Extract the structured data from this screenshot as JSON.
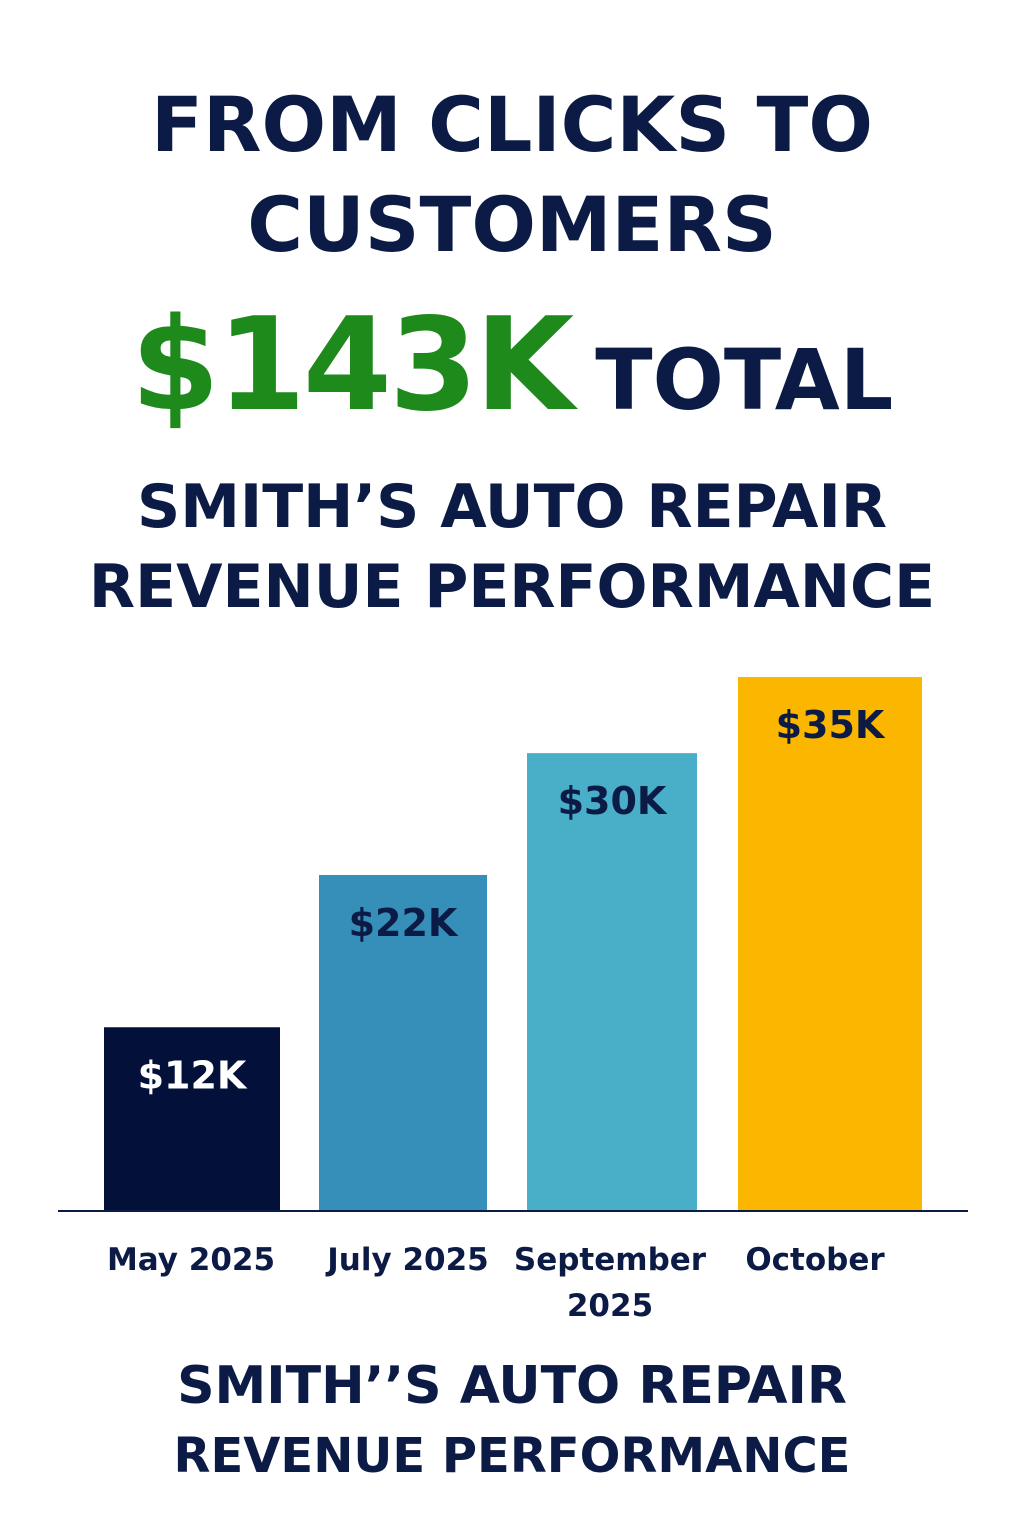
{
  "header": {
    "line1": "FROM CLICKS TO",
    "line2": "CUSTOMERS",
    "total_amount": "$143K",
    "total_word": "TOTAL",
    "subtitle_line1": "SMITH’S AUTO REPAIR",
    "subtitle_line2": "REVENUE PERFORMANCE"
  },
  "footer": {
    "line1": "SMITH’’S AUTO REPAIR",
    "line2": "REVENUE PERFORMANCE"
  },
  "colors": {
    "navy": "#0b1b45",
    "green": "#1e8a1b"
  },
  "chart_data": {
    "type": "bar",
    "categories": [
      [
        "May 2025"
      ],
      [
        "July 2025"
      ],
      [
        "September",
        "2025"
      ],
      [
        "October"
      ]
    ],
    "values": [
      12,
      22,
      30,
      35
    ],
    "value_labels": [
      "$12K",
      "$22K",
      "$30K",
      "$35K"
    ],
    "units": "$K",
    "bar_colors": [
      "#03113a",
      "#358fb8",
      "#49aec8",
      "#fbb700"
    ],
    "label_colors": [
      "#ffffff",
      "#0b1b45",
      "#0b1b45",
      "#0b1b45"
    ],
    "ylim": [
      0,
      35
    ],
    "grid": false,
    "legend": "none",
    "title": "",
    "xlabel": "",
    "ylabel": ""
  }
}
